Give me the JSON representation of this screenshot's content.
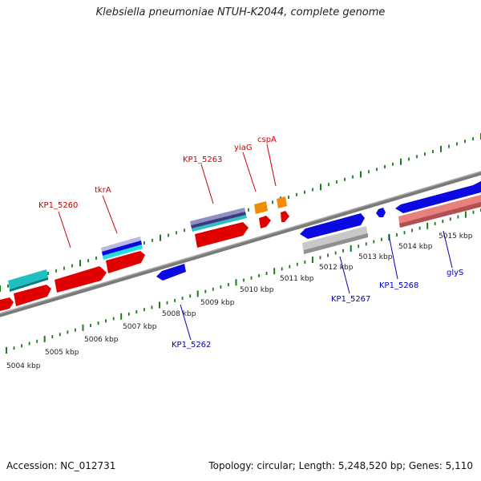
{
  "title": "Klebsiella pneumoniae NTUH-K2044, complete genome",
  "accession": "Accession: NC_012731",
  "topology": "Topology: circular; Length: 5,248,520 bp; Genes: 5,110",
  "colors": {
    "backbone": "#808080",
    "tick_green": "#1a7a1a",
    "label_red": "#cc0000",
    "label_blue": "#0000bb",
    "red_gene": "#e00000",
    "blue_gene": "#0a0ae0",
    "cyan_gene": "#20c0c0",
    "orange_gene": "#f08c00",
    "gray_gene": "#c0c0c0",
    "pink_gene": "#e88080"
  },
  "scale_labels": [
    "5004 kbp",
    "5005 kbp",
    "5006 kbp",
    "5007 kbp",
    "5008 kbp",
    "5009 kbp",
    "5010 kbp",
    "5011 kbp",
    "5012 kbp",
    "5013 kbp",
    "5014 kbp",
    "5015 kbp"
  ],
  "gene_labels": [
    {
      "text": "KP1_5260",
      "color": "red"
    },
    {
      "text": "tkrA",
      "color": "red"
    },
    {
      "text": "KP1_5263",
      "color": "red"
    },
    {
      "text": "yiaG",
      "color": "red"
    },
    {
      "text": "cspA",
      "color": "red"
    },
    {
      "text": "KP1_5262",
      "color": "blue"
    },
    {
      "text": "KP1_5267",
      "color": "blue"
    },
    {
      "text": "KP1_5268",
      "color": "blue"
    },
    {
      "text": "glyS",
      "color": "blue"
    }
  ]
}
